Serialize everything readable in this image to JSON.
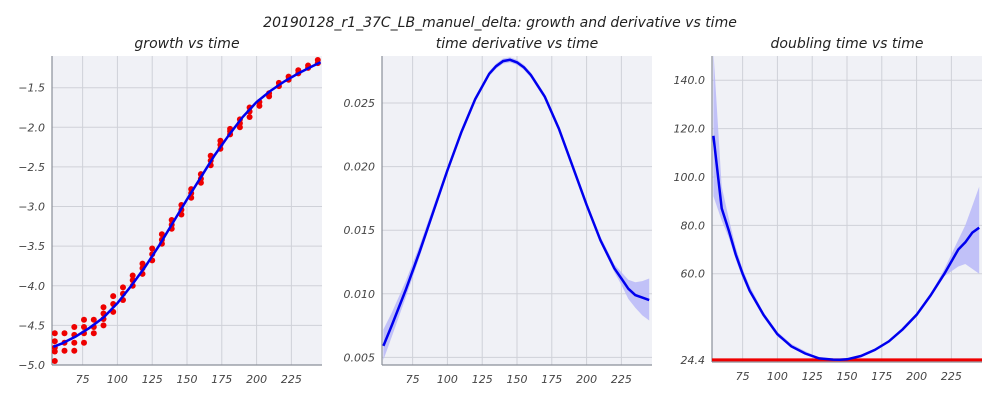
{
  "figure": {
    "title": "20190128_r1_37C_LB_manuel_delta: growth and derivative vs time"
  },
  "colors": {
    "background": "#f0f1f6",
    "grid": "#cfd1d8",
    "fit": "#0000ee",
    "points": "#ee0000",
    "band": "#b8b8f8",
    "reference": "#ee0000"
  },
  "chart_data": [
    {
      "type": "scatter",
      "title": "growth vs time",
      "xlabel": "",
      "ylabel": "",
      "xlim": [
        53,
        247
      ],
      "ylim": [
        -5.0,
        -1.1
      ],
      "xticks": [
        75,
        100,
        125,
        150,
        175,
        200,
        225
      ],
      "yticks": [
        -5.0,
        -4.5,
        -4.0,
        -3.5,
        -3.0,
        -2.5,
        -2.0,
        -1.5
      ],
      "ytick_labels": [
        "−5.0",
        "−4.5",
        "−4.0",
        "−3.5",
        "−3.0",
        "−2.5",
        "−2.0",
        "−1.5"
      ],
      "grid": true,
      "points": {
        "x": [
          55,
          55,
          55,
          55,
          55,
          62,
          62,
          62,
          69,
          69,
          69,
          69,
          76,
          76,
          76,
          76,
          83,
          83,
          83,
          90,
          90,
          90,
          90,
          97,
          97,
          97,
          104,
          104,
          104,
          111,
          111,
          111,
          118,
          118,
          118,
          125,
          125,
          125,
          132,
          132,
          132,
          139,
          139,
          139,
          146,
          146,
          146,
          153,
          153,
          153,
          160,
          160,
          160,
          167,
          167,
          167,
          174,
          174,
          174,
          181,
          181,
          181,
          188,
          188,
          188,
          195,
          195,
          195,
          202,
          202,
          209,
          209,
          216,
          216,
          223,
          223,
          230,
          230,
          237,
          237,
          244,
          244
        ],
        "y": [
          -4.95,
          -4.83,
          -4.78,
          -4.7,
          -4.6,
          -4.82,
          -4.72,
          -4.6,
          -4.82,
          -4.72,
          -4.62,
          -4.52,
          -4.72,
          -4.6,
          -4.52,
          -4.43,
          -4.6,
          -4.52,
          -4.43,
          -4.5,
          -4.42,
          -4.35,
          -4.27,
          -4.33,
          -4.23,
          -4.13,
          -4.18,
          -4.1,
          -4.02,
          -4.0,
          -3.93,
          -3.87,
          -3.85,
          -3.78,
          -3.72,
          -3.68,
          -3.6,
          -3.53,
          -3.47,
          -3.42,
          -3.35,
          -3.28,
          -3.23,
          -3.17,
          -3.1,
          -3.04,
          -2.98,
          -2.89,
          -2.83,
          -2.78,
          -2.7,
          -2.65,
          -2.59,
          -2.48,
          -2.42,
          -2.36,
          -2.27,
          -2.22,
          -2.17,
          -2.09,
          -2.05,
          -2.02,
          -2.0,
          -1.95,
          -1.9,
          -1.87,
          -1.8,
          -1.75,
          -1.73,
          -1.68,
          -1.61,
          -1.57,
          -1.48,
          -1.44,
          -1.4,
          -1.36,
          -1.32,
          -1.28,
          -1.25,
          -1.22,
          -1.19,
          -1.15
        ]
      },
      "fit_line": {
        "x": [
          54,
          60,
          70,
          80,
          90,
          100,
          110,
          120,
          130,
          140,
          150,
          160,
          170,
          180,
          190,
          200,
          210,
          220,
          230,
          240,
          246
        ],
        "y": [
          -4.77,
          -4.73,
          -4.64,
          -4.53,
          -4.4,
          -4.22,
          -4.0,
          -3.76,
          -3.49,
          -3.2,
          -2.91,
          -2.63,
          -2.35,
          -2.1,
          -1.87,
          -1.68,
          -1.54,
          -1.42,
          -1.32,
          -1.23,
          -1.18
        ]
      }
    },
    {
      "type": "line",
      "title": "time derivative vs time",
      "xlabel": "",
      "ylabel": "",
      "xlim": [
        53,
        247
      ],
      "ylim": [
        0.0044,
        0.0287
      ],
      "xticks": [
        75,
        100,
        125,
        150,
        175,
        200,
        225
      ],
      "yticks": [
        0.005,
        0.01,
        0.015,
        0.02,
        0.025
      ],
      "ytick_labels": [
        "0.005",
        "0.010",
        "0.015",
        "0.020",
        "0.025"
      ],
      "grid": true,
      "series": [
        {
          "x": [
            54,
            60,
            70,
            80,
            90,
            100,
            110,
            120,
            130,
            135,
            140,
            145,
            150,
            155,
            160,
            170,
            180,
            190,
            200,
            210,
            220,
            225,
            230,
            235,
            240,
            245
          ],
          "y": [
            0.0059,
            0.0075,
            0.0103,
            0.0133,
            0.0165,
            0.0197,
            0.0227,
            0.0253,
            0.0273,
            0.0279,
            0.0283,
            0.0284,
            0.0282,
            0.0278,
            0.0272,
            0.0255,
            0.023,
            0.02,
            0.017,
            0.0142,
            0.012,
            0.0112,
            0.0104,
            0.0099,
            0.0097,
            0.0095
          ],
          "lower": [
            0.0048,
            0.0066,
            0.0097,
            0.0129,
            0.0162,
            0.0195,
            0.0225,
            0.0251,
            0.0271,
            0.0277,
            0.0281,
            0.0282,
            0.028,
            0.0276,
            0.027,
            0.0253,
            0.0228,
            0.0198,
            0.0168,
            0.014,
            0.0117,
            0.0107,
            0.0096,
            0.0089,
            0.0083,
            0.0079
          ],
          "upper": [
            0.0072,
            0.0085,
            0.011,
            0.0138,
            0.0169,
            0.02,
            0.0229,
            0.0255,
            0.0275,
            0.0281,
            0.0285,
            0.0286,
            0.0284,
            0.028,
            0.0274,
            0.0257,
            0.0232,
            0.0202,
            0.0172,
            0.0145,
            0.0123,
            0.0117,
            0.0111,
            0.0109,
            0.011,
            0.0112
          ]
        }
      ]
    },
    {
      "type": "line",
      "title": "doubling time vs time",
      "xlabel": "",
      "ylabel": "",
      "xlim": [
        53,
        247
      ],
      "ylim": [
        23.5,
        150
      ],
      "xticks": [
        75,
        100,
        125,
        150,
        175,
        200,
        225
      ],
      "yticks": [
        24.4,
        60.0,
        80.0,
        100.0,
        120.0,
        140.0
      ],
      "ytick_labels": [
        "24.4",
        "60.0",
        "80.0",
        "100.0",
        "120.0",
        "140.0"
      ],
      "grid": true,
      "reference_line": {
        "y": 24.4
      },
      "series": [
        {
          "x": [
            54,
            60,
            65,
            70,
            75,
            80,
            90,
            100,
            110,
            120,
            130,
            140,
            145,
            150,
            160,
            170,
            180,
            190,
            200,
            210,
            220,
            230,
            235,
            240,
            245
          ],
          "y": [
            117,
            87,
            78,
            68,
            60,
            53,
            43,
            35,
            30,
            27,
            25,
            24.5,
            24.4,
            24.6,
            26,
            28.5,
            32,
            37,
            43,
            51,
            60,
            70,
            73,
            77,
            79
          ],
          "lower": [
            92,
            82,
            75,
            66,
            58,
            52,
            42,
            34,
            30,
            27,
            25,
            24.4,
            24.3,
            24.5,
            25.8,
            28.3,
            31.8,
            36.8,
            42.7,
            50.5,
            59,
            63,
            64,
            62,
            60
          ],
          "upper": [
            152,
            96,
            83,
            71,
            62,
            55,
            44,
            36,
            31,
            28,
            25.3,
            24.7,
            24.6,
            24.8,
            26.2,
            28.8,
            32.3,
            37.3,
            43.3,
            51.5,
            62,
            74,
            80,
            88,
            96
          ]
        }
      ]
    }
  ]
}
